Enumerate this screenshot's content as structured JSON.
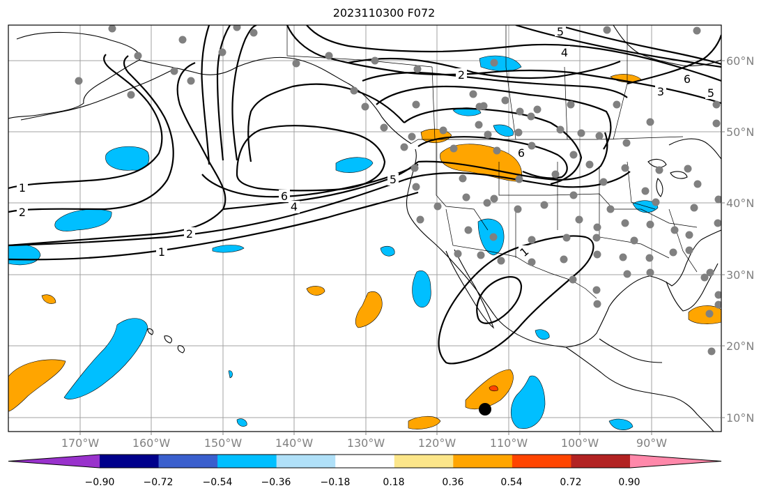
{
  "map": {
    "title": "2023110300 F072",
    "lon_labels": [
      "170°W",
      "160°W",
      "150°W",
      "140°W",
      "130°W",
      "120°W",
      "110°W",
      "100°W",
      "90°W"
    ],
    "lat_labels": [
      "60°N",
      "50°N",
      "40°N",
      "30°N",
      "20°N",
      "10°N"
    ],
    "contour_labels": [
      "1",
      "2",
      "1",
      "2",
      "4",
      "6",
      "5",
      "6",
      "2",
      "4",
      "5",
      "3",
      "5",
      "6",
      "1"
    ],
    "colorbar": {
      "tick_labels": [
        "−0.90",
        "−0.72",
        "−0.54",
        "−0.36",
        "−0.18",
        "0.18",
        "0.36",
        "0.54",
        "0.72",
        "0.90"
      ],
      "colors": [
        "#9932cc",
        "#00008b",
        "#3a5fcd",
        "#00bfff",
        "#b0e0f8",
        "#ffffff",
        "#fce68a",
        "#ffa500",
        "#ff4500",
        "#b22222",
        "#ff88aa"
      ]
    }
  }
}
